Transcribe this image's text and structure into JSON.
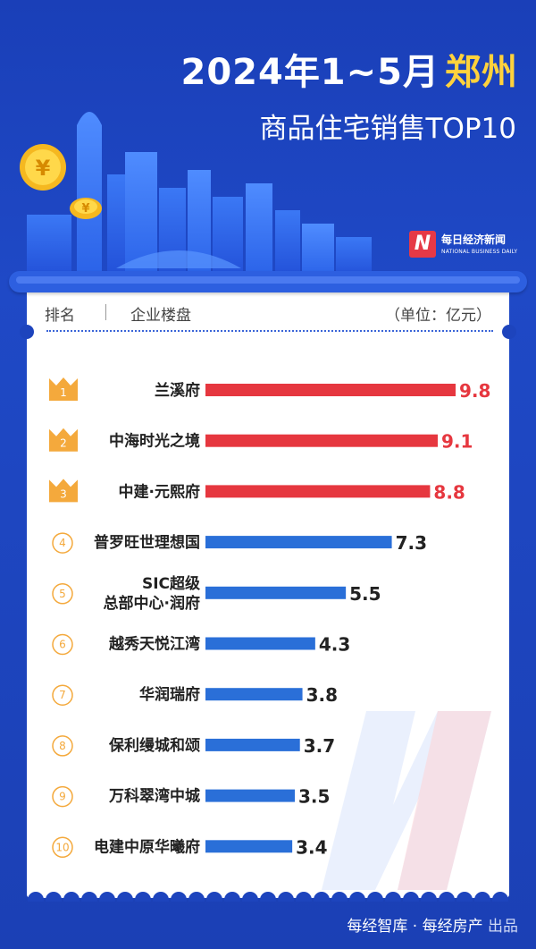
{
  "title": {
    "line1_prefix": "2024年1~5月",
    "line1_highlight": "郑州",
    "line2": "商品住宅销售TOP10"
  },
  "logo": {
    "cn": "每日经济新闻",
    "en": "NATIONAL BUSINESS DAILY"
  },
  "table_header": {
    "rank": "排名",
    "enterprise": "企业楼盘",
    "unit": "（单位：亿元）"
  },
  "footer": {
    "source": "每经智库 · 每经房产",
    "suffix": "出品"
  },
  "colors": {
    "top3": "#e6373f",
    "others": "#2a6fd8",
    "crown": "#f4a93c",
    "background": "#1d44bd"
  },
  "chart_data": {
    "type": "bar",
    "orientation": "horizontal",
    "unit": "亿元",
    "categories": [
      "兰溪府",
      "中海时光之境",
      "中建·元熙府",
      "普罗旺世理想国",
      "SIC超级总部中心·润府",
      "越秀天悦江湾",
      "华润瑞府",
      "保利缦城和颂",
      "万科翠湾中城",
      "电建中原华曦府"
    ],
    "label_lines": [
      [
        "兰溪府"
      ],
      [
        "中海时光之境"
      ],
      [
        "中建·元熙府"
      ],
      [
        "普罗旺世理想国"
      ],
      [
        "SIC超级",
        "总部中心·润府"
      ],
      [
        "越秀天悦江湾"
      ],
      [
        "华润瑞府"
      ],
      [
        "保利缦城和颂"
      ],
      [
        "万科翠湾中城"
      ],
      [
        "电建中原华曦府"
      ]
    ],
    "ranks": [
      "1",
      "2",
      "3",
      "4",
      "5",
      "6",
      "7",
      "8",
      "9",
      "10"
    ],
    "values": [
      9.8,
      9.1,
      8.8,
      7.3,
      5.5,
      4.3,
      3.8,
      3.7,
      3.5,
      3.4
    ],
    "value_labels": [
      "9.8",
      "9.1",
      "8.8",
      "7.3",
      "5.5",
      "4.3",
      "3.8",
      "3.7",
      "3.5",
      "3.4"
    ],
    "xlim": [
      0,
      10.5
    ],
    "grid": false,
    "legend": "none"
  }
}
